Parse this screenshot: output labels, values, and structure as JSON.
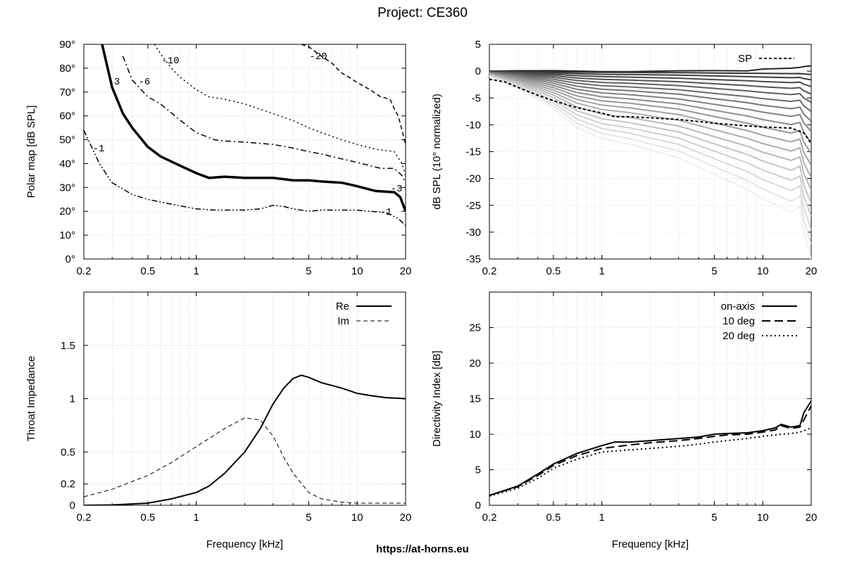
{
  "page": {
    "title": "Project: CE360",
    "footer": "https://at-horns.eu"
  },
  "chart_data": [
    {
      "id": "polar",
      "type": "line",
      "xscale": "log",
      "xlim": [
        0.2,
        20
      ],
      "ylim": [
        0,
        90
      ],
      "xticks": [
        0.2,
        0.5,
        1,
        5,
        10,
        20
      ],
      "xtick_labels": [
        "0.2",
        "0.5",
        "1",
        "5",
        "10",
        "20"
      ],
      "yticks": [
        0,
        10,
        20,
        30,
        40,
        50,
        60,
        70,
        80,
        90
      ],
      "ytick_labels": [
        "0°",
        "10°",
        "20°",
        "30°",
        "40°",
        "50°",
        "60°",
        "70°",
        "80°",
        "90°"
      ],
      "xlabel": "",
      "ylabel": "Polar map [dB SPL]",
      "grid": true,
      "series": [
        {
          "name": "-1",
          "style": "dashdotdot",
          "width": 1.5,
          "x": [
            0.2,
            0.25,
            0.3,
            0.4,
            0.5,
            0.7,
            1,
            1.3,
            2,
            2.5,
            3,
            3.5,
            4,
            5,
            6,
            8,
            10,
            12,
            15,
            18,
            20
          ],
          "y": [
            54,
            40,
            32,
            27,
            25,
            23,
            21,
            20.5,
            20.5,
            21,
            22.5,
            22,
            21,
            20,
            20.5,
            20.5,
            20.5,
            20,
            19.5,
            17,
            14
          ]
        },
        {
          "name": "-3",
          "style": "solid",
          "width": 3.5,
          "x": [
            0.26,
            0.3,
            0.35,
            0.4,
            0.5,
            0.6,
            0.8,
            1,
            1.2,
            1.5,
            2,
            3,
            4,
            5,
            6,
            8,
            10,
            13,
            17,
            18.5,
            20
          ],
          "y": [
            90,
            72,
            61,
            55,
            47,
            43,
            39,
            36,
            34,
            34.5,
            34,
            34,
            33,
            33,
            32.5,
            32,
            30.5,
            28.5,
            28,
            26,
            20
          ]
        },
        {
          "name": "-6",
          "style": "dashdot",
          "width": 1.5,
          "x": [
            0.35,
            0.4,
            0.5,
            0.6,
            0.8,
            1,
            1.3,
            1.5,
            2,
            3,
            4,
            5,
            6,
            8,
            10,
            14,
            17,
            19,
            20
          ],
          "y": [
            85,
            75,
            68,
            65,
            58,
            53,
            50,
            49.5,
            49,
            48,
            46.5,
            45,
            44,
            42,
            40.5,
            38,
            38,
            35,
            32
          ]
        },
        {
          "name": "-10",
          "style": "dotted",
          "width": 1.5,
          "x": [
            0.55,
            0.6,
            0.7,
            0.8,
            1,
            1.2,
            1.5,
            2,
            3,
            4,
            5,
            6,
            8,
            10,
            13,
            17,
            19,
            20
          ],
          "y": [
            90,
            86,
            80,
            76,
            71,
            68,
            67,
            65,
            61,
            58,
            55,
            53,
            50,
            48,
            46,
            45,
            40,
            35
          ]
        },
        {
          "name": "-20",
          "style": "dashed",
          "width": 1.5,
          "x": [
            4.5,
            5,
            6,
            7,
            8,
            9,
            10,
            12,
            14,
            16,
            17,
            18,
            19,
            20
          ],
          "y": [
            90,
            89,
            85,
            82,
            78,
            76,
            74,
            71,
            68,
            67,
            63,
            60,
            54,
            48
          ]
        }
      ],
      "contour_labels": [
        "-3",
        "-6",
        "-10",
        "-20",
        "-1",
        "-3",
        "-1"
      ]
    },
    {
      "id": "spl",
      "type": "line",
      "xscale": "log",
      "xlim": [
        0.2,
        20
      ],
      "ylim": [
        -35,
        5
      ],
      "xticks": [
        0.2,
        0.5,
        1,
        5,
        10,
        20
      ],
      "xtick_labels": [
        "0.2",
        "0.5",
        "1",
        "5",
        "10",
        "20"
      ],
      "yticks": [
        -35,
        -30,
        -25,
        -20,
        -15,
        -10,
        -5,
        0,
        5
      ],
      "ytick_labels": [
        "-35",
        "-30",
        "-25",
        "-20",
        "-15",
        "-10",
        "-5",
        "0",
        "5"
      ],
      "xlabel": "",
      "ylabel": "dB SPL (10° normalized)",
      "grid": true,
      "legend": {
        "placement": "top-right",
        "entries": [
          {
            "label": "SP",
            "style": "dashed"
          }
        ]
      },
      "series": [
        {
          "name": "SP",
          "style": "dashed",
          "width": 2,
          "x": [
            0.2,
            0.25,
            0.3,
            0.4,
            0.5,
            0.7,
            1,
            1.2,
            1.5,
            2,
            3,
            5,
            8,
            10,
            15,
            18,
            20
          ],
          "y": [
            -1.5,
            -2,
            -3,
            -4.5,
            -5.5,
            -6.8,
            -7.8,
            -8.5,
            -8.5,
            -8.7,
            -9,
            -9.7,
            -10.2,
            -10.4,
            -10.6,
            -11.5,
            -13.5
          ]
        }
      ],
      "angle_family": {
        "count": 19,
        "x": [
          0.2,
          0.3,
          0.5,
          0.7,
          1,
          1.5,
          2,
          3,
          5,
          8,
          10,
          15,
          17,
          18,
          20
        ],
        "base_shape": [
          0.03,
          0.09,
          0.2,
          0.3,
          0.36,
          0.39,
          0.42,
          0.46,
          0.55,
          0.63,
          0.68,
          0.75,
          0.72,
          0.86,
          1.0
        ],
        "min_at_20khz": -35
      }
    },
    {
      "id": "impedance",
      "type": "line",
      "xscale": "log",
      "xlim": [
        0.2,
        20
      ],
      "ylim": [
        0,
        2
      ],
      "xticks": [
        0.2,
        0.5,
        1,
        5,
        10,
        20
      ],
      "xtick_labels": [
        "0.2",
        "0.5",
        "1",
        "5",
        "10",
        "20"
      ],
      "yticks": [
        0,
        0.2,
        0.5,
        1,
        1.5
      ],
      "ytick_labels": [
        "0",
        "0.2",
        "0.5",
        "1",
        "1.5"
      ],
      "xlabel": "Frequency [kHz]",
      "ylabel": "Throat Impedance",
      "grid": true,
      "legend": {
        "placement": "top-right",
        "entries": [
          {
            "label": "Re",
            "style": "solid"
          },
          {
            "label": "Im",
            "style": "dashed"
          }
        ]
      },
      "series": [
        {
          "name": "Re",
          "style": "solid",
          "width": 2,
          "x": [
            0.2,
            0.3,
            0.5,
            0.7,
            1,
            1.2,
            1.5,
            2,
            2.5,
            3,
            3.5,
            4,
            4.5,
            5,
            6,
            8,
            10,
            12,
            15,
            20
          ],
          "y": [
            0,
            0.003,
            0.02,
            0.06,
            0.12,
            0.18,
            0.3,
            0.5,
            0.72,
            0.95,
            1.1,
            1.19,
            1.22,
            1.2,
            1.15,
            1.1,
            1.05,
            1.03,
            1.01,
            1.0
          ]
        },
        {
          "name": "Im",
          "style": "dashed",
          "width": 1,
          "x": [
            0.2,
            0.3,
            0.5,
            0.7,
            1,
            1.5,
            2,
            2.5,
            3,
            3.5,
            4,
            5,
            6,
            8,
            10,
            15,
            20
          ],
          "y": [
            0.08,
            0.15,
            0.28,
            0.4,
            0.55,
            0.72,
            0.82,
            0.8,
            0.65,
            0.45,
            0.3,
            0.12,
            0.06,
            0.03,
            0.02,
            0.02,
            0.02
          ]
        }
      ]
    },
    {
      "id": "di",
      "type": "line",
      "xscale": "log",
      "xlim": [
        0.2,
        20
      ],
      "ylim": [
        0,
        30
      ],
      "xticks": [
        0.2,
        0.5,
        1,
        5,
        10,
        20
      ],
      "xtick_labels": [
        "0.2",
        "0.5",
        "1",
        "5",
        "10",
        "20"
      ],
      "yticks": [
        0,
        5,
        10,
        15,
        20,
        25
      ],
      "ytick_labels": [
        "0",
        "5",
        "10",
        "15",
        "20",
        "25"
      ],
      "xlabel": "Frequency [kHz]",
      "ylabel": "Directivity Index [dB]",
      "grid": true,
      "legend": {
        "placement": "top-right",
        "entries": [
          {
            "label": "on-axis",
            "style": "solid"
          },
          {
            "label": "10 deg",
            "style": "longdash"
          },
          {
            "label": "20 deg",
            "style": "dotted"
          }
        ]
      },
      "series": [
        {
          "name": "on-axis",
          "style": "solid",
          "width": 2,
          "x": [
            0.2,
            0.3,
            0.4,
            0.5,
            0.7,
            1,
            1.2,
            1.5,
            2,
            3,
            4,
            5,
            6,
            8,
            10,
            12,
            13,
            15,
            17,
            18,
            20
          ],
          "y": [
            1.4,
            2.7,
            4.4,
            5.8,
            7.3,
            8.4,
            8.9,
            8.9,
            9.1,
            9.4,
            9.6,
            10.0,
            10.1,
            10.2,
            10.5,
            10.9,
            11.4,
            11.0,
            11.2,
            13.0,
            14.7
          ]
        },
        {
          "name": "10 deg",
          "style": "longdash",
          "width": 2,
          "x": [
            0.2,
            0.3,
            0.4,
            0.5,
            0.7,
            1,
            1.5,
            2,
            3,
            4,
            5,
            6,
            8,
            10,
            12,
            13,
            15,
            17,
            18,
            20
          ],
          "y": [
            1.4,
            2.6,
            4.2,
            5.6,
            7.0,
            8.0,
            8.5,
            8.8,
            9.1,
            9.4,
            9.7,
            9.9,
            10.0,
            10.3,
            10.6,
            11.2,
            10.8,
            11.0,
            12.0,
            14.0
          ]
        },
        {
          "name": "20 deg",
          "style": "dotted",
          "width": 2,
          "x": [
            0.2,
            0.3,
            0.4,
            0.5,
            0.7,
            1,
            1.5,
            2,
            3,
            4,
            5,
            6,
            8,
            10,
            13,
            15,
            17,
            18,
            20
          ],
          "y": [
            1.3,
            2.4,
            3.8,
            5.2,
            6.5,
            7.5,
            7.8,
            8.0,
            8.3,
            8.6,
            8.9,
            9.1,
            9.4,
            9.7,
            10.0,
            10.1,
            10.3,
            10.5,
            10.9
          ]
        }
      ]
    }
  ]
}
